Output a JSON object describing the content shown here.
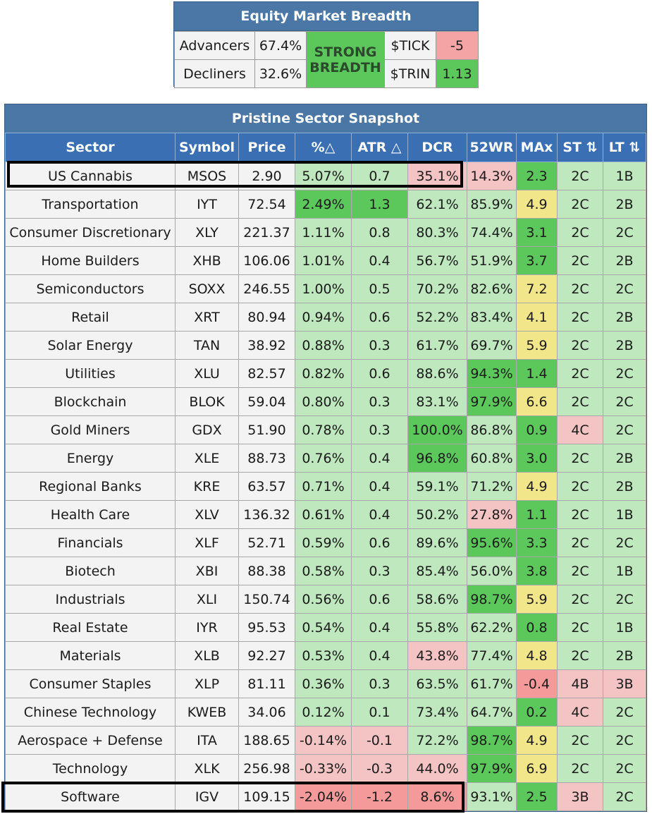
{
  "breadth": {
    "title": "Equity Market Breadth",
    "advancers_label": "Advancers",
    "advancers_value": "67.4%",
    "decliners_label": "Decliners",
    "decliners_value": "32.6%",
    "status_line1": "STRONG",
    "status_line2": "BREADTH",
    "tick_label": "$TICK",
    "tick_value": "-5",
    "trin_label": "$TRIN",
    "trin_value": "1.13"
  },
  "snapshot": {
    "title": "Pristine Sector Snapshot",
    "headers": [
      "Sector",
      "Symbol",
      "Price",
      "%△",
      "ATR △",
      "DCR",
      "52WR",
      "MAx",
      "ST ⇅",
      "LT ⇅"
    ],
    "rows": [
      {
        "sector": "US Cannabis",
        "symbol": "MSOS",
        "price": "2.90",
        "pct": "5.07%",
        "atr": "0.7",
        "dcr": "35.1%",
        "wr": "14.3%",
        "max": "2.3",
        "st": "2C",
        "lt": "1B",
        "c": [
          "g-light",
          "g-light",
          "red-lt",
          "red-lt",
          "g-dark",
          "g-light",
          "g-light"
        ]
      },
      {
        "sector": "Transportation",
        "symbol": "IYT",
        "price": "72.54",
        "pct": "2.49%",
        "atr": "1.3",
        "dcr": "62.1%",
        "wr": "85.9%",
        "max": "4.9",
        "st": "2C",
        "lt": "2B",
        "c": [
          "g-dark",
          "g-dark",
          "g-light",
          "g-light",
          "yellow",
          "g-light",
          "g-light"
        ]
      },
      {
        "sector": "Consumer Discretionary",
        "symbol": "XLY",
        "price": "221.37",
        "pct": "1.11%",
        "atr": "0.8",
        "dcr": "80.3%",
        "wr": "74.4%",
        "max": "3.1",
        "st": "2C",
        "lt": "2C",
        "c": [
          "g-light",
          "g-light",
          "g-light",
          "g-light",
          "g-dark",
          "g-light",
          "g-light"
        ]
      },
      {
        "sector": "Home Builders",
        "symbol": "XHB",
        "price": "106.06",
        "pct": "1.01%",
        "atr": "0.4",
        "dcr": "56.7%",
        "wr": "51.9%",
        "max": "3.7",
        "st": "2C",
        "lt": "2B",
        "c": [
          "g-light",
          "g-light",
          "g-light",
          "g-light",
          "g-dark",
          "g-light",
          "g-light"
        ]
      },
      {
        "sector": "Semiconductors",
        "symbol": "SOXX",
        "price": "246.55",
        "pct": "1.00%",
        "atr": "0.5",
        "dcr": "70.2%",
        "wr": "82.6%",
        "max": "7.2",
        "st": "2C",
        "lt": "2C",
        "c": [
          "g-light",
          "g-light",
          "g-light",
          "g-light",
          "yellow",
          "g-light",
          "g-light"
        ]
      },
      {
        "sector": "Retail",
        "symbol": "XRT",
        "price": "80.94",
        "pct": "0.94%",
        "atr": "0.6",
        "dcr": "52.2%",
        "wr": "83.4%",
        "max": "4.1",
        "st": "2C",
        "lt": "2B",
        "c": [
          "g-light",
          "g-light",
          "g-light",
          "g-light",
          "yellow",
          "g-light",
          "g-light"
        ]
      },
      {
        "sector": "Solar Energy",
        "symbol": "TAN",
        "price": "38.92",
        "pct": "0.88%",
        "atr": "0.3",
        "dcr": "61.7%",
        "wr": "69.7%",
        "max": "5.9",
        "st": "2C",
        "lt": "2B",
        "c": [
          "g-light",
          "g-light",
          "g-light",
          "g-light",
          "yellow",
          "g-light",
          "g-light"
        ]
      },
      {
        "sector": "Utilities",
        "symbol": "XLU",
        "price": "82.57",
        "pct": "0.82%",
        "atr": "0.6",
        "dcr": "88.6%",
        "wr": "94.3%",
        "max": "1.4",
        "st": "2C",
        "lt": "2C",
        "c": [
          "g-light",
          "g-light",
          "g-light",
          "g-dark",
          "g-dark",
          "g-light",
          "g-light"
        ]
      },
      {
        "sector": "Blockchain",
        "symbol": "BLOK",
        "price": "59.04",
        "pct": "0.80%",
        "atr": "0.3",
        "dcr": "83.1%",
        "wr": "97.9%",
        "max": "6.6",
        "st": "2C",
        "lt": "2C",
        "c": [
          "g-light",
          "g-light",
          "g-light",
          "g-dark",
          "yellow",
          "g-light",
          "g-light"
        ]
      },
      {
        "sector": "Gold Miners",
        "symbol": "GDX",
        "price": "51.90",
        "pct": "0.78%",
        "atr": "0.3",
        "dcr": "100.0%",
        "wr": "86.8%",
        "max": "0.9",
        "st": "4C",
        "lt": "2C",
        "c": [
          "g-light",
          "g-light",
          "g-dark",
          "g-light",
          "g-dark",
          "red-lt",
          "g-light"
        ]
      },
      {
        "sector": "Energy",
        "symbol": "XLE",
        "price": "88.73",
        "pct": "0.76%",
        "atr": "0.4",
        "dcr": "96.8%",
        "wr": "60.8%",
        "max": "3.0",
        "st": "2C",
        "lt": "2B",
        "c": [
          "g-light",
          "g-light",
          "g-dark",
          "g-light",
          "g-dark",
          "g-light",
          "g-light"
        ]
      },
      {
        "sector": "Regional Banks",
        "symbol": "KRE",
        "price": "63.57",
        "pct": "0.71%",
        "atr": "0.4",
        "dcr": "59.1%",
        "wr": "71.2%",
        "max": "4.9",
        "st": "2C",
        "lt": "2B",
        "c": [
          "g-light",
          "g-light",
          "g-light",
          "g-light",
          "yellow",
          "g-light",
          "g-light"
        ]
      },
      {
        "sector": "Health Care",
        "symbol": "XLV",
        "price": "136.32",
        "pct": "0.61%",
        "atr": "0.4",
        "dcr": "50.2%",
        "wr": "27.8%",
        "max": "1.1",
        "st": "2C",
        "lt": "1B",
        "c": [
          "g-light",
          "g-light",
          "g-light",
          "red-lt",
          "g-dark",
          "g-light",
          "g-light"
        ]
      },
      {
        "sector": "Financials",
        "symbol": "XLF",
        "price": "52.71",
        "pct": "0.59%",
        "atr": "0.6",
        "dcr": "89.6%",
        "wr": "95.6%",
        "max": "3.3",
        "st": "2C",
        "lt": "2C",
        "c": [
          "g-light",
          "g-light",
          "g-light",
          "g-dark",
          "g-dark",
          "g-light",
          "g-light"
        ]
      },
      {
        "sector": "Biotech",
        "symbol": "XBI",
        "price": "88.38",
        "pct": "0.58%",
        "atr": "0.3",
        "dcr": "85.4%",
        "wr": "56.0%",
        "max": "3.8",
        "st": "2C",
        "lt": "1B",
        "c": [
          "g-light",
          "g-light",
          "g-light",
          "g-light",
          "g-dark",
          "g-light",
          "g-light"
        ]
      },
      {
        "sector": "Industrials",
        "symbol": "XLI",
        "price": "150.74",
        "pct": "0.56%",
        "atr": "0.6",
        "dcr": "58.6%",
        "wr": "98.7%",
        "max": "5.9",
        "st": "2C",
        "lt": "2C",
        "c": [
          "g-light",
          "g-light",
          "g-light",
          "g-dark",
          "yellow",
          "g-light",
          "g-light"
        ]
      },
      {
        "sector": "Real Estate",
        "symbol": "IYR",
        "price": "95.53",
        "pct": "0.54%",
        "atr": "0.4",
        "dcr": "55.8%",
        "wr": "62.2%",
        "max": "0.8",
        "st": "2C",
        "lt": "1B",
        "c": [
          "g-light",
          "g-light",
          "g-light",
          "g-light",
          "g-dark",
          "g-light",
          "g-light"
        ]
      },
      {
        "sector": "Materials",
        "symbol": "XLB",
        "price": "92.27",
        "pct": "0.53%",
        "atr": "0.4",
        "dcr": "43.8%",
        "wr": "77.4%",
        "max": "4.8",
        "st": "2C",
        "lt": "2B",
        "c": [
          "g-light",
          "g-light",
          "red-lt",
          "g-light",
          "yellow",
          "g-light",
          "g-light"
        ]
      },
      {
        "sector": "Consumer Staples",
        "symbol": "XLP",
        "price": "81.11",
        "pct": "0.36%",
        "atr": "0.3",
        "dcr": "63.5%",
        "wr": "61.7%",
        "max": "-0.4",
        "st": "4B",
        "lt": "3B",
        "c": [
          "g-light",
          "g-light",
          "g-light",
          "g-light",
          "red-md",
          "red-lt",
          "red-lt"
        ]
      },
      {
        "sector": "Chinese Technology",
        "symbol": "KWEB",
        "price": "34.06",
        "pct": "0.12%",
        "atr": "0.1",
        "dcr": "73.4%",
        "wr": "64.7%",
        "max": "0.2",
        "st": "4C",
        "lt": "2C",
        "c": [
          "g-light",
          "g-light",
          "g-light",
          "g-light",
          "g-dark",
          "red-lt",
          "g-light"
        ]
      },
      {
        "sector": "Aerospace + Defense",
        "symbol": "ITA",
        "price": "188.65",
        "pct": "-0.14%",
        "atr": "-0.1",
        "dcr": "72.2%",
        "wr": "98.7%",
        "max": "4.9",
        "st": "2C",
        "lt": "2C",
        "c": [
          "red-lt",
          "red-lt",
          "g-light",
          "g-dark",
          "yellow",
          "g-light",
          "g-light"
        ]
      },
      {
        "sector": "Technology",
        "symbol": "XLK",
        "price": "256.98",
        "pct": "-0.33%",
        "atr": "-0.3",
        "dcr": "44.0%",
        "wr": "97.9%",
        "max": "6.9",
        "st": "2C",
        "lt": "2C",
        "c": [
          "red-lt",
          "red-lt",
          "red-lt",
          "g-dark",
          "yellow",
          "g-light",
          "g-light"
        ]
      },
      {
        "sector": "Software",
        "symbol": "IGV",
        "price": "109.15",
        "pct": "-2.04%",
        "atr": "-1.2",
        "dcr": "8.6%",
        "wr": "93.1%",
        "max": "2.5",
        "st": "3B",
        "lt": "2C",
        "c": [
          "red-md",
          "red-md",
          "red-md",
          "g-light",
          "g-dark",
          "red-lt",
          "g-light"
        ]
      }
    ]
  }
}
